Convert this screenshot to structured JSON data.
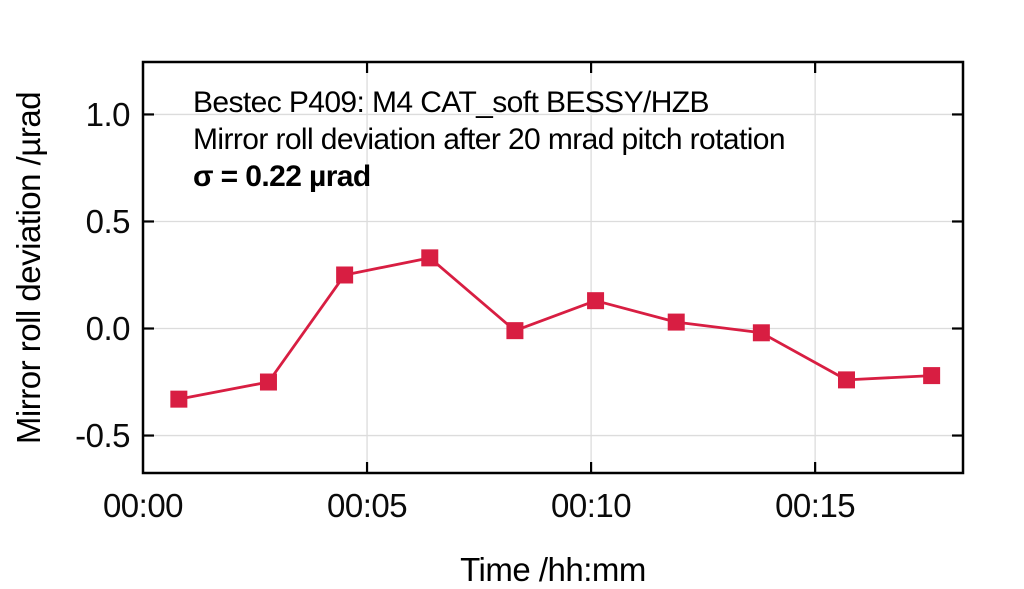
{
  "chart_data": {
    "type": "line",
    "annotation": {
      "line1": "Bestec P409: M4 CAT_soft BESSY/HZB",
      "line2": "Mirror roll deviation after 20 mrad pitch rotation",
      "line3": "σ = 0.22 µrad"
    },
    "sigma_urad": 0.22,
    "xlabel": "Time /hh:mm",
    "ylabel": "Mirror roll deviation /µrad",
    "x_unit": "minutes",
    "x": [
      0.8,
      2.8,
      4.5,
      6.4,
      8.3,
      10.1,
      11.9,
      13.8,
      15.7,
      17.6
    ],
    "y": [
      -0.33,
      -0.25,
      0.25,
      0.33,
      -0.01,
      0.13,
      0.03,
      -0.02,
      -0.24,
      -0.22
    ],
    "x_ticks": [
      {
        "value": 0,
        "label": "00:00"
      },
      {
        "value": 5,
        "label": "00:05"
      },
      {
        "value": 10,
        "label": "00:10"
      },
      {
        "value": 15,
        "label": "00:15"
      }
    ],
    "y_ticks": [
      {
        "value": -0.5,
        "label": "-0.5"
      },
      {
        "value": 0.0,
        "label": "0.0"
      },
      {
        "value": 0.5,
        "label": "0.5"
      },
      {
        "value": 1.0,
        "label": "1.0"
      }
    ],
    "xlim": [
      0,
      18.3
    ],
    "ylim": [
      -0.675,
      1.245
    ],
    "grid": true,
    "legend": "none",
    "marker": "filled-square",
    "series_color": "#d81e42",
    "axis_color": "#000000",
    "grid_color": "#dcdcdc",
    "background": "#ffffff"
  }
}
